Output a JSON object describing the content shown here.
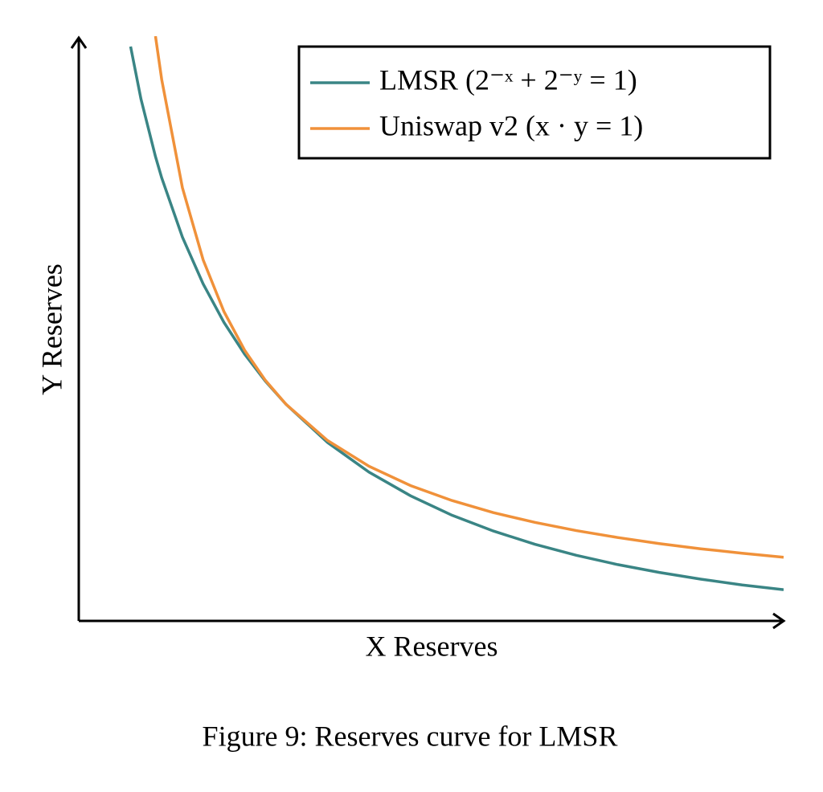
{
  "chart_data": {
    "type": "line",
    "caption": "Figure 9: Reserves curve for LMSR",
    "xlabel": "X Reserves",
    "ylabel": "Y Reserves",
    "x": [
      0.25,
      0.3,
      0.37,
      0.4,
      0.5,
      0.6,
      0.7,
      0.8,
      0.9,
      1.0,
      1.2,
      1.4,
      1.6,
      1.8,
      2.0,
      2.2,
      2.4,
      2.6,
      2.8,
      3.0,
      3.2,
      3.4
    ],
    "series": [
      {
        "name": "LMSR (2⁻ˣ + 2⁻ʸ = 1)",
        "color": "#3a8585",
        "values": [
          2.652,
          2.41,
          2.144,
          2.046,
          1.772,
          1.556,
          1.379,
          1.232,
          1.107,
          1.0,
          0.824,
          0.687,
          0.578,
          0.488,
          0.415,
          0.354,
          0.303,
          0.26,
          0.224,
          0.193,
          0.166,
          0.144
        ]
      },
      {
        "name": "Uniswap v2 (x · y = 1)",
        "color": "#f0913a",
        "values": [
          null,
          null,
          2.7,
          2.5,
          2.0,
          1.667,
          1.429,
          1.25,
          1.111,
          1.0,
          0.833,
          0.714,
          0.625,
          0.556,
          0.5,
          0.455,
          0.417,
          0.385,
          0.357,
          0.333,
          0.3125,
          0.294
        ]
      }
    ],
    "xlim": [
      0,
      3.4
    ],
    "ylim": [
      0,
      2.7
    ],
    "legend": "upper right"
  }
}
